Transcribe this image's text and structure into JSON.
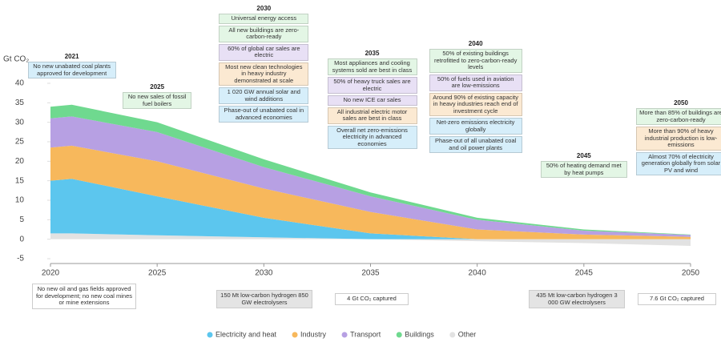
{
  "chart_data": {
    "type": "stacked-area",
    "y_label": "Gt CO₂",
    "x": [
      2020,
      2021,
      2025,
      2030,
      2035,
      2040,
      2045,
      2050
    ],
    "xlim": [
      2020,
      2050
    ],
    "xticks": [
      2020,
      2025,
      2030,
      2035,
      2040,
      2045,
      2050
    ],
    "ylim": [
      -5,
      40
    ],
    "yticks": [
      -5,
      0,
      5,
      10,
      15,
      20,
      25,
      30,
      35,
      40
    ],
    "grid": false,
    "series": [
      {
        "name": "Other",
        "color": "#e2e2e2",
        "values": [
          1.5,
          1.5,
          1,
          0.5,
          0,
          -0.5,
          -1,
          -1.7
        ]
      },
      {
        "name": "Electricity and heat",
        "color": "#5cc6ee",
        "values": [
          13.5,
          14,
          10,
          5,
          1.5,
          0,
          0,
          0
        ]
      },
      {
        "name": "Industry",
        "color": "#f7b85c",
        "values": [
          8.5,
          8.5,
          9,
          7.5,
          5.5,
          2.5,
          1.2,
          0.6
        ]
      },
      {
        "name": "Transport",
        "color": "#b7a0e3",
        "values": [
          7.5,
          7.5,
          7.5,
          5.5,
          4,
          2.5,
          1,
          0.5
        ]
      },
      {
        "name": "Buildings",
        "color": "#6fd98f",
        "values": [
          3,
          3,
          2.5,
          2,
          1,
          0.5,
          0.3,
          0.1
        ]
      }
    ],
    "legend_order": [
      1,
      2,
      3,
      4,
      0
    ],
    "annotations": [
      {
        "year": 2021,
        "items": [
          {
            "text": "No new unabated coal plants approved for development",
            "color": "#d6eefa"
          }
        ]
      },
      {
        "year": 2025,
        "items": [
          {
            "text": "No new sales of fossil fuel boilers",
            "color": "#e3f6e5"
          }
        ]
      },
      {
        "year": 2030,
        "items": [
          {
            "text": "Universal energy access",
            "color": "#e3f6e5"
          },
          {
            "text": "All new buildings are zero-carbon-ready",
            "color": "#e3f6e5"
          },
          {
            "text": "60% of global car sales are electric",
            "color": "#e8e0f5"
          },
          {
            "text": "Most new clean technologies in heavy industry demonstrated at scale",
            "color": "#fbe9d2"
          },
          {
            "text": "1 020 GW annual solar and wind additions",
            "color": "#d6eefa"
          },
          {
            "text": "Phase-out of unabated coal in advanced economies",
            "color": "#d6eefa"
          }
        ]
      },
      {
        "year": 2035,
        "items": [
          {
            "text": "Most appliances and cooling systems sold are best in class",
            "color": "#e3f6e5"
          },
          {
            "text": "50% of heavy truck sales are electric",
            "color": "#e8e0f5"
          },
          {
            "text": "No new ICE car sales",
            "color": "#e8e0f5"
          },
          {
            "text": "All industrial electric motor sales are best in class",
            "color": "#fbe9d2"
          },
          {
            "text": "Overall net zero-emissions electricity in advanced economies",
            "color": "#d6eefa"
          }
        ]
      },
      {
        "year": 2040,
        "items": [
          {
            "text": "50% of existing buildings retrofitted to zero-carbon-ready levels",
            "color": "#e3f6e5"
          },
          {
            "text": "50% of fuels used in aviation are low-emissions",
            "color": "#e8e0f5"
          },
          {
            "text": "Around 90% of existing capacity in heavy industries reach end of investment cycle",
            "color": "#fbe9d2"
          },
          {
            "text": "Net-zero emissions electricity globally",
            "color": "#d6eefa"
          },
          {
            "text": "Phase-out of all unabated coal and oil power plants",
            "color": "#d6eefa"
          }
        ]
      },
      {
        "year": 2045,
        "items": [
          {
            "text": "50% of heating demand met by heat pumps",
            "color": "#e3f6e5"
          }
        ]
      },
      {
        "year": 2050,
        "items": [
          {
            "text": "More than 85% of buildings are zero-carbon-ready",
            "color": "#e3f6e5"
          },
          {
            "text": "More than 90% of heavy industrial production is low-emissions",
            "color": "#fbe9d2"
          },
          {
            "text": "Almost 70% of electricity generation globally from solar PV and wind",
            "color": "#d6eefa"
          }
        ]
      }
    ],
    "notes": [
      {
        "text": "No new oil and gas fields approved for development; no new coal mines or mine extensions",
        "color": "#ffffff"
      },
      {
        "text": "150 Mt low-carbon hydrogen 850 GW electrolysers",
        "color": "#e4e4e4"
      },
      {
        "text": "4 Gt CO₂ captured",
        "color": "#ffffff"
      },
      {
        "text": "435 Mt low-carbon hydrogen 3 000 GW electrolysers",
        "color": "#e4e4e4"
      },
      {
        "text": "7.6 Gt CO₂ captured",
        "color": "#ffffff"
      }
    ]
  }
}
